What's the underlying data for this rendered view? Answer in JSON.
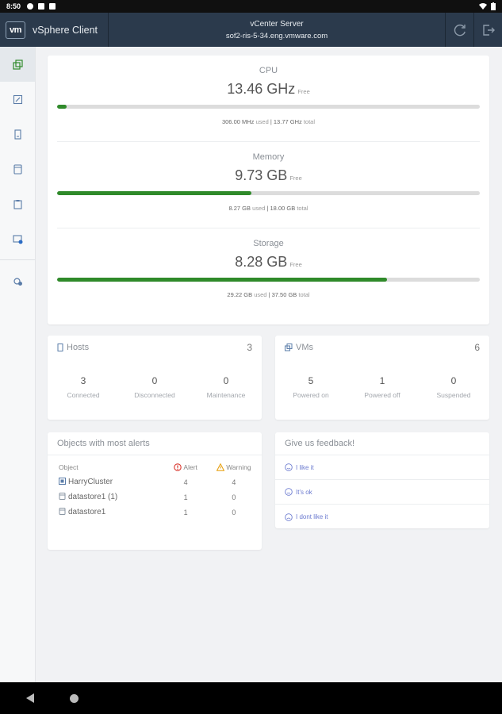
{
  "statusbar": {
    "time": "8:50"
  },
  "header": {
    "logo": "vm",
    "app_title": "vSphere Client",
    "server_title": "vCenter Server",
    "server_host": "sof2-ris-5-34.eng.vmware.com",
    "refresh_icon": "refresh-icon",
    "logout_icon": "logout-icon"
  },
  "sidebar": {
    "items": [
      {
        "icon": "vms-and-templates-icon",
        "active": true
      },
      {
        "icon": "edit-icon",
        "active": false
      },
      {
        "icon": "host-icon",
        "active": false
      },
      {
        "icon": "datastore-icon",
        "active": false
      },
      {
        "icon": "clipboard-icon",
        "active": false
      },
      {
        "icon": "event-console-icon",
        "active": false
      },
      {
        "icon": "settings-icon",
        "active": false
      }
    ]
  },
  "resources": [
    {
      "name": "CPU",
      "free_value": "13.46 GHz",
      "free_label": "Free",
      "used": "306.00 MHz",
      "used_label": "used",
      "total": "13.77 GHz",
      "total_label": "total",
      "used_fraction": 0.022
    },
    {
      "name": "Memory",
      "free_value": "9.73 GB",
      "free_label": "Free",
      "used": "8.27 GB",
      "used_label": "used",
      "total": "18.00 GB",
      "total_label": "total",
      "used_fraction": 0.46
    },
    {
      "name": "Storage",
      "free_value": "8.28 GB",
      "free_label": "Free",
      "used": "29.22 GB",
      "used_label": "used",
      "total": "37.50 GB",
      "total_label": "total",
      "used_fraction": 0.78
    }
  ],
  "hosts": {
    "title": "Hosts",
    "count": "3",
    "stats": [
      {
        "value": "3",
        "label": "Connected"
      },
      {
        "value": "0",
        "label": "Disconnected"
      },
      {
        "value": "0",
        "label": "Maintenance"
      }
    ]
  },
  "vms": {
    "title": "VMs",
    "count": "6",
    "stats": [
      {
        "value": "5",
        "label": "Powered on"
      },
      {
        "value": "1",
        "label": "Powered off"
      },
      {
        "value": "0",
        "label": "Suspended"
      }
    ]
  },
  "alerts": {
    "title": "Objects with most alerts",
    "col_object": "Object",
    "col_alert": "Alert",
    "col_warning": "Warning",
    "rows": [
      {
        "name": "HarryCluster",
        "icon": "cluster-icon",
        "alert": "4",
        "warning": "4"
      },
      {
        "name": "datastore1 (1)",
        "icon": "datastore-icon",
        "alert": "1",
        "warning": "0"
      },
      {
        "name": "datastore1",
        "icon": "datastore-icon",
        "alert": "1",
        "warning": "0"
      }
    ]
  },
  "feedback": {
    "title": "Give us feedback!",
    "options": [
      {
        "label": "I like it",
        "icon": "smile-icon"
      },
      {
        "label": "It's ok",
        "icon": "neutral-face-icon"
      },
      {
        "label": "I dont like it",
        "icon": "frown-icon"
      }
    ]
  },
  "colors": {
    "header_bg": "#2b3a4c",
    "bar_fill": "#2f8a2a",
    "link": "#6c7bd0",
    "alert_red": "#d9342b",
    "warning_orange": "#e8a317"
  }
}
